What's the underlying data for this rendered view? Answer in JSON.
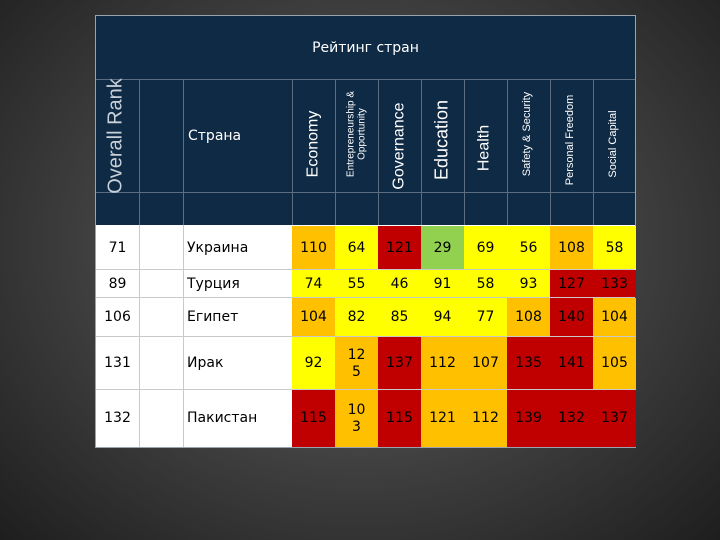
{
  "title": "Рейтинг стран",
  "header": {
    "overall_rank": "Overall Rank",
    "country": "Страна",
    "categories": [
      "Economy",
      "Entrepreneurship & Opportunity",
      "Governance",
      "Education",
      "Health",
      "Safety & Security",
      "Personal Freedom",
      "Social Capital"
    ]
  },
  "colors": {
    "header_bg": "#0f2a44",
    "green": "#92d050",
    "yellow": "#ffff00",
    "orange": "#ffc000",
    "red": "#c00000"
  },
  "rows": [
    {
      "rank": "71",
      "country": "Украина",
      "values": [
        "110",
        "64",
        "121",
        "29",
        "69",
        "56",
        "108",
        "58"
      ],
      "colors": [
        "orange",
        "yellow",
        "red",
        "green",
        "yellow",
        "yellow",
        "orange",
        "yellow"
      ]
    },
    {
      "rank": "89",
      "country": "Турция",
      "values": [
        "74",
        "55",
        "46",
        "91",
        "58",
        "93",
        "127",
        "133"
      ],
      "colors": [
        "yellow",
        "yellow",
        "yellow",
        "yellow",
        "yellow",
        "yellow",
        "red",
        "red"
      ]
    },
    {
      "rank": "106",
      "country": "Египет",
      "values": [
        "104",
        "82",
        "85",
        "94",
        "77",
        "108",
        "140",
        "104"
      ],
      "colors": [
        "orange",
        "yellow",
        "yellow",
        "yellow",
        "yellow",
        "orange",
        "red",
        "orange"
      ]
    },
    {
      "rank": "131",
      "country": "Ирак",
      "values": [
        "92",
        "12\n5",
        "137",
        "112",
        "107",
        "135",
        "141",
        "105"
      ],
      "colors": [
        "yellow",
        "orange",
        "red",
        "orange",
        "orange",
        "red",
        "red",
        "orange"
      ]
    },
    {
      "rank": "132",
      "country": "Пакистан",
      "values": [
        "115",
        "10\n3",
        "115",
        "121",
        "112",
        "139",
        "132",
        "137"
      ],
      "colors": [
        "red",
        "orange",
        "red",
        "orange",
        "orange",
        "red",
        "red",
        "red"
      ]
    }
  ]
}
